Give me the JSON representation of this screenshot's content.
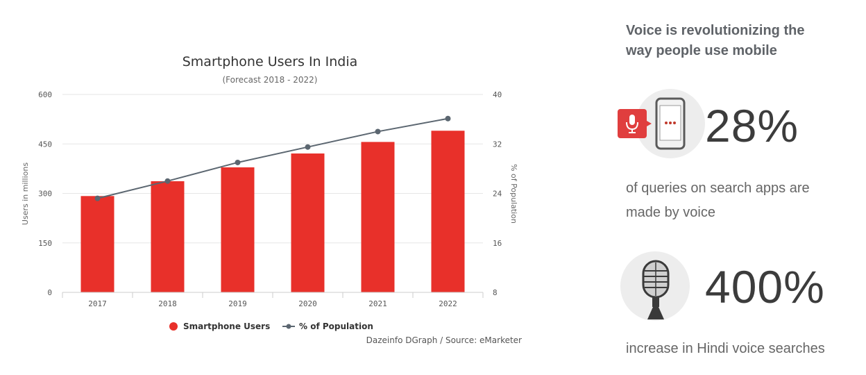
{
  "chart_data": {
    "type": "bar",
    "title": "Smartphone Users In India",
    "subtitle": "(Forecast 2018 - 2022)",
    "categories": [
      "2017",
      "2018",
      "2019",
      "2020",
      "2021",
      "2022"
    ],
    "series": [
      {
        "name": "Smartphone Users",
        "type": "bar",
        "axis": "left",
        "color": "#e8302a",
        "values": [
          292,
          337,
          379,
          421,
          456,
          490
        ]
      },
      {
        "name": "% of Population",
        "type": "line",
        "axis": "right",
        "color": "#5b6670",
        "values": [
          23.2,
          26.0,
          29.0,
          31.5,
          34.0,
          36.1
        ]
      }
    ],
    "ylabel": "Users in millions",
    "y2label": "% of Population",
    "ylim": [
      0,
      600
    ],
    "y2lim": [
      8,
      40
    ],
    "yticks": [
      "0",
      "150",
      "300",
      "450",
      "600"
    ],
    "y2ticks": [
      "8",
      "16",
      "24",
      "32",
      "40"
    ],
    "grid": true,
    "legend": "bottom-center",
    "credit": "Dazeinfo DGraph / Source: eMarketer"
  },
  "panel": {
    "headline_line1": "Voice is revolutionizing the",
    "headline_line2": "way people use mobile",
    "stat1": {
      "value": "28%",
      "desc_line1": "of queries on search apps are",
      "desc_line2": "made by voice",
      "icons": [
        "microphone-badge-icon",
        "smartphone-icon"
      ]
    },
    "stat2": {
      "value": "400%",
      "desc_line1": "increase in Hindi voice searches",
      "icons": [
        "studio-microphone-icon"
      ]
    },
    "accent_color": "#e03e3e"
  }
}
